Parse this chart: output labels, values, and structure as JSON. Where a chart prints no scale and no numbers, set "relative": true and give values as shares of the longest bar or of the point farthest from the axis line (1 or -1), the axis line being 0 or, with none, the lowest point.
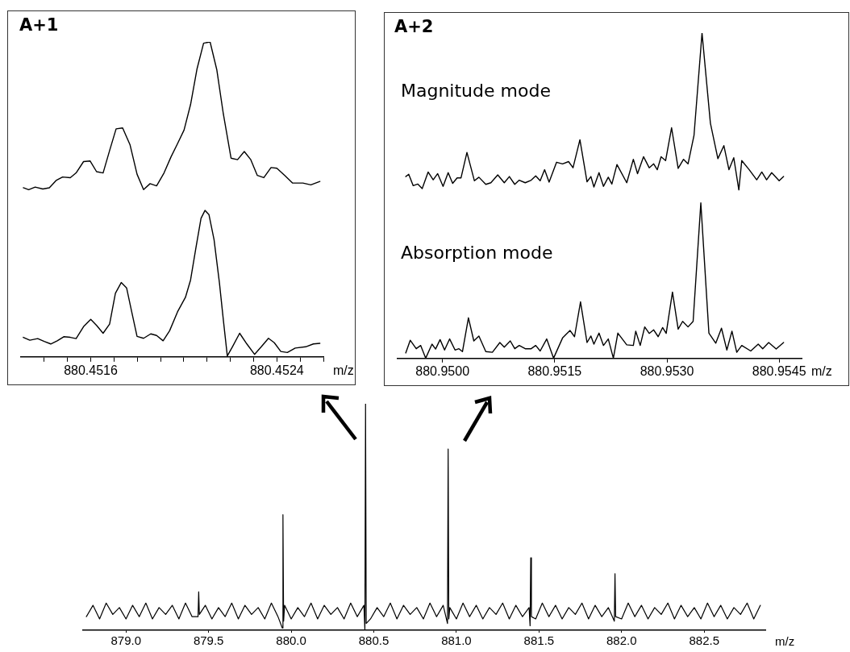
{
  "chart_data": [
    {
      "type": "line",
      "title": "A+1",
      "xlabel": "m/z",
      "relative": true,
      "xlim": [
        880.4513,
        880.4526
      ],
      "xticks": [
        {
          "value": 880.4514,
          "label": null
        },
        {
          "value": 880.4515,
          "label": null
        },
        880.4516,
        {
          "value": 880.4517,
          "label": null
        },
        {
          "value": 880.4518,
          "label": null
        },
        {
          "value": 880.4519,
          "label": null
        },
        {
          "value": 880.452,
          "label": null
        },
        {
          "value": 880.4521,
          "label": null
        },
        {
          "value": 880.4522,
          "label": null
        },
        {
          "value": 880.4523,
          "label": null
        },
        880.4524,
        {
          "value": 880.4525,
          "label": null
        },
        {
          "value": 880.4526,
          "label": null
        }
      ],
      "series": [
        {
          "color": "#000000",
          "x": [
            880.45131,
            880.451333,
            880.451361,
            880.451394,
            880.451422,
            880.451451,
            880.451479,
            880.451512,
            880.451537,
            880.451569,
            880.451597,
            880.451625,
            880.451653,
            880.451683,
            880.451709,
            880.451737,
            880.451769,
            880.451799,
            880.451827,
            880.451855,
            880.451883,
            880.451915,
            880.451945,
            880.451973,
            880.452001,
            880.452029,
            880.452057,
            880.452085,
            880.452113,
            880.452142,
            880.45217,
            880.452203,
            880.452231,
            880.45226,
            880.452288,
            880.452316,
            880.452344,
            880.452375,
            880.4524,
            880.452434,
            880.452467,
            880.452512,
            880.452546,
            880.452585
          ],
          "values": [
            0.537,
            0.531,
            0.539,
            0.533,
            0.537,
            0.56,
            0.571,
            0.569,
            0.584,
            0.62,
            0.622,
            0.588,
            0.584,
            0.66,
            0.724,
            0.727,
            0.673,
            0.58,
            0.531,
            0.55,
            0.543,
            0.584,
            0.635,
            0.677,
            0.72,
            0.801,
            0.915,
            0.996,
            1,
            0.911,
            0.771,
            0.631,
            0.626,
            0.652,
            0.626,
            0.576,
            0.569,
            0.601,
            0.599,
            0.576,
            0.552,
            0.552,
            0.546,
            0.557
          ]
        },
        {
          "color": "#000000",
          "x": [
            880.45131,
            880.451338,
            880.451372,
            880.4514,
            880.451428,
            880.451456,
            880.451484,
            880.451512,
            880.451537,
            880.451569,
            880.4516,
            880.451625,
            880.451653,
            880.451681,
            880.451706,
            880.451731,
            880.451754,
            880.451776,
            880.451799,
            880.451827,
            880.451858,
            880.451883,
            880.451911,
            880.451939,
            880.451973,
            880.452007,
            880.452029,
            880.452052,
            880.452074,
            880.452091,
            880.452108,
            880.45213,
            880.452153,
            880.45217,
            880.452187,
            880.452209,
            880.45224,
            880.452271,
            880.452304,
            880.452333,
            880.452364,
            880.452389,
            880.452417,
            880.452445,
            880.452479,
            880.452524,
            880.452557,
            880.452585
          ],
          "values": [
            0.062,
            0.053,
            0.058,
            0.049,
            0.041,
            0.051,
            0.064,
            0.062,
            0.058,
            0.096,
            0.119,
            0.1,
            0.075,
            0.104,
            0.202,
            0.236,
            0.219,
            0.143,
            0.065,
            0.059,
            0.073,
            0.068,
            0.051,
            0.083,
            0.143,
            0.189,
            0.244,
            0.346,
            0.44,
            0.465,
            0.452,
            0.372,
            0.236,
            0.117,
            0.003,
            0.032,
            0.075,
            0.041,
            0.008,
            0.032,
            0.059,
            0.045,
            0.017,
            0.014,
            0.028,
            0.032,
            0.041,
            0.043
          ]
        }
      ]
    },
    {
      "type": "line",
      "title": "A+2",
      "xlabel": "m/z",
      "relative": true,
      "xlim": [
        880.9494,
        880.9548
      ],
      "xticks": [
        {
          "value": 880.95,
          "label": "880.9500"
        },
        {
          "value": 880.9515,
          "label": "880.9515"
        },
        {
          "value": 880.953,
          "label": "880.9530"
        },
        {
          "value": 880.9545,
          "label": "880.9545"
        }
      ],
      "series": [
        {
          "name": "Magnitude mode",
          "color": "#000000",
          "x": [
            880.949509,
            880.949549,
            880.949609,
            880.949669,
            880.949729,
            880.949808,
            880.949876,
            880.949936,
            880.950008,
            880.950076,
            880.950136,
            880.950196,
            880.950248,
            880.950327,
            880.950427,
            880.950487,
            880.950579,
            880.950647,
            880.950739,
            880.950826,
            880.950894,
            880.950966,
            880.951026,
            880.951106,
            880.951186,
            880.951246,
            880.951306,
            880.951365,
            880.951425,
            880.951525,
            880.951605,
            880.951685,
            880.951745,
            880.951837,
            880.951932,
            880.951984,
            880.952024,
            880.952092,
            880.952152,
            880.952216,
            880.952264,
            880.952332,
            880.952463,
            880.952551,
            880.952607,
            880.952687,
            880.952763,
            880.952823,
            880.952871,
            880.952922,
            880.952982,
            880.953062,
            880.95315,
            880.953222,
            880.953282,
            880.953362,
            880.953469,
            880.953581,
            880.953681,
            880.953761,
            880.953829,
            880.953893,
            880.953961,
            880.954,
            880.9541,
            880.9542,
            880.954268,
            880.954332,
            880.9544,
            880.9545,
            880.954559
          ],
          "values": [
            0.559,
            0.566,
            0.531,
            0.536,
            0.522,
            0.573,
            0.549,
            0.568,
            0.529,
            0.571,
            0.538,
            0.555,
            0.555,
            0.633,
            0.546,
            0.557,
            0.535,
            0.54,
            0.564,
            0.54,
            0.559,
            0.535,
            0.548,
            0.54,
            0.548,
            0.561,
            0.546,
            0.58,
            0.542,
            0.603,
            0.598,
            0.605,
            0.586,
            0.672,
            0.543,
            0.559,
            0.527,
            0.571,
            0.529,
            0.557,
            0.536,
            0.596,
            0.54,
            0.612,
            0.568,
            0.62,
            0.586,
            0.598,
            0.58,
            0.62,
            0.608,
            0.709,
            0.584,
            0.612,
            0.598,
            0.686,
            1,
            0.723,
            0.614,
            0.654,
            0.58,
            0.617,
            0.518,
            0.608,
            0.58,
            0.549,
            0.573,
            0.549,
            0.571,
            0.546,
            0.559
          ]
        },
        {
          "name": "Absorption mode",
          "color": "#000000",
          "x": [
            880.949509,
            880.949569,
            880.949649,
            880.949709,
            880.949776,
            880.94986,
            880.949908,
            880.949968,
            880.950028,
            880.950096,
            880.950168,
            880.95022,
            880.950267,
            880.950347,
            880.950419,
            880.950487,
            880.950579,
            880.950667,
            880.950767,
            880.950826,
            880.950906,
            880.950966,
            880.951026,
            880.951106,
            880.951186,
            880.951246,
            880.951306,
            880.951393,
            880.951485,
            880.951605,
            880.951705,
            880.951765,
            880.951845,
            880.951932,
            880.951984,
            880.952024,
            880.952092,
            880.952152,
            880.952216,
            880.952284,
            880.952344,
            880.952463,
            880.952551,
            880.952583,
            880.952643,
            880.952703,
            880.952763,
            880.952823,
            880.952883,
            880.952942,
            880.95299,
            880.953074,
            880.95315,
            880.95321,
            880.953282,
            880.95335,
            880.953453,
            880.953561,
            880.953653,
            880.953729,
            880.953801,
            880.953869,
            880.953933,
            880.954,
            880.95412,
            880.95422,
            880.95428,
            880.95436,
            880.95446,
            880.954559
          ],
          "values": [
            0.017,
            0.056,
            0.03,
            0.04,
            0.001,
            0.044,
            0.029,
            0.058,
            0.026,
            0.06,
            0.026,
            0.03,
            0.021,
            0.125,
            0.054,
            0.069,
            0.021,
            0.019,
            0.049,
            0.035,
            0.054,
            0.03,
            0.04,
            0.03,
            0.03,
            0.04,
            0.023,
            0.06,
            0.001,
            0.063,
            0.086,
            0.067,
            0.174,
            0.049,
            0.069,
            0.044,
            0.078,
            0.04,
            0.06,
            0.001,
            0.078,
            0.042,
            0.04,
            0.084,
            0.04,
            0.097,
            0.077,
            0.088,
            0.067,
            0.095,
            0.077,
            0.204,
            0.09,
            0.114,
            0.097,
            0.114,
            0.478,
            0.078,
            0.047,
            0.093,
            0.026,
            0.084,
            0.019,
            0.04,
            0.023,
            0.044,
            0.03,
            0.049,
            0.029,
            0.049
          ]
        }
      ]
    },
    {
      "type": "line",
      "xlabel": "m/z",
      "relative": true,
      "xlim": [
        878.74,
        882.87
      ],
      "xticks": [
        {
          "value": 879,
          "label": "879.0"
        },
        {
          "value": 879.5,
          "label": "879.5"
        },
        {
          "value": 880,
          "label": "880.0"
        },
        {
          "value": 880.5,
          "label": "880.5"
        },
        {
          "value": 881,
          "label": "881.0"
        },
        {
          "value": 881.5,
          "label": "881.5"
        },
        {
          "value": 882,
          "label": "882.0"
        },
        {
          "value": 882.5,
          "label": "882.5"
        }
      ],
      "series": [
        {
          "color": "#000000",
          "x": [
            878.76,
            878.8,
            878.84,
            878.88,
            878.92,
            878.96,
            879,
            879.04,
            879.08,
            879.12,
            879.16,
            879.2,
            879.24,
            879.28,
            879.32,
            879.36,
            879.4,
            879.436,
            879.44,
            879.444,
            879.48,
            879.52,
            879.56,
            879.6,
            879.64,
            879.68,
            879.72,
            879.76,
            879.8,
            879.84,
            879.88,
            879.92,
            879.946,
            879.95,
            879.954,
            879.96,
            880,
            880.04,
            880.08,
            880.12,
            880.16,
            880.2,
            880.24,
            880.28,
            880.32,
            880.36,
            880.4,
            880.44,
            880.446,
            880.45,
            880.454,
            880.48,
            880.52,
            880.56,
            880.6,
            880.64,
            880.68,
            880.72,
            880.76,
            880.8,
            880.84,
            880.88,
            880.92,
            880.946,
            880.95,
            880.954,
            880.96,
            881,
            881.04,
            881.08,
            881.12,
            881.16,
            881.2,
            881.24,
            881.28,
            881.32,
            881.36,
            881.4,
            881.44,
            881.446,
            881.45,
            881.454,
            881.48,
            881.52,
            881.56,
            881.6,
            881.64,
            881.68,
            881.72,
            881.76,
            881.8,
            881.84,
            881.88,
            881.92,
            881.956,
            881.96,
            881.964,
            882,
            882.04,
            882.08,
            882.12,
            882.16,
            882.2,
            882.24,
            882.28,
            882.32,
            882.36,
            882.4,
            882.44,
            882.48,
            882.52,
            882.56,
            882.6,
            882.64,
            882.68,
            882.72,
            882.76,
            882.8,
            882.84
          ],
          "values": [
            0.06,
            0.11,
            0.05,
            0.12,
            0.07,
            0.1,
            0.05,
            0.11,
            0.06,
            0.12,
            0.05,
            0.1,
            0.07,
            0.11,
            0.05,
            0.12,
            0.06,
            0.06,
            0.17,
            0.07,
            0.11,
            0.05,
            0.1,
            0.06,
            0.12,
            0.05,
            0.11,
            0.07,
            0.1,
            0.05,
            0.12,
            0.06,
            0.01,
            0.51,
            0.04,
            0.11,
            0.05,
            0.1,
            0.06,
            0.12,
            0.05,
            0.11,
            0.07,
            0.1,
            0.05,
            0.12,
            0.06,
            0.11,
            0,
            1,
            0.03,
            0.05,
            0.1,
            0.06,
            0.12,
            0.05,
            0.11,
            0.07,
            0.1,
            0.05,
            0.12,
            0.06,
            0.11,
            0.03,
            0.8,
            0.05,
            0.1,
            0.05,
            0.12,
            0.06,
            0.11,
            0.05,
            0.1,
            0.07,
            0.12,
            0.05,
            0.11,
            0.06,
            0.1,
            0.02,
            0.32,
            0.06,
            0.05,
            0.12,
            0.06,
            0.11,
            0.05,
            0.1,
            0.07,
            0.12,
            0.05,
            0.11,
            0.06,
            0.1,
            0.04,
            0.25,
            0.06,
            0.05,
            0.12,
            0.06,
            0.11,
            0.05,
            0.1,
            0.07,
            0.12,
            0.05,
            0.11,
            0.06,
            0.1,
            0.05,
            0.12,
            0.06,
            0.11,
            0.05,
            0.1,
            0.07,
            0.12,
            0.05,
            0.11
          ]
        }
      ]
    }
  ]
}
